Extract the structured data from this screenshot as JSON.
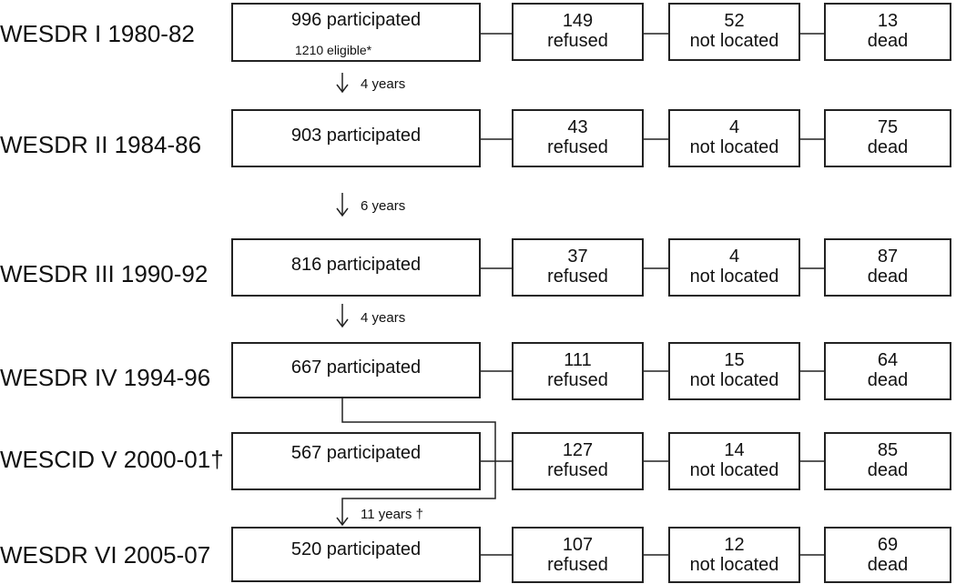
{
  "rows": [
    {
      "label": "WESDR I 1980-82",
      "participated": "996  participated",
      "eligible": "1210 eligible*",
      "refused_n": "149",
      "refused": "refused",
      "notlocated_n": "52",
      "notlocated": "not located",
      "dead_n": "13",
      "dead": "dead"
    },
    {
      "label": "WESDR II 1984-86",
      "participated": "903 participated",
      "refused_n": "43",
      "refused": "refused",
      "notlocated_n": "4",
      "notlocated": "not located",
      "dead_n": "75",
      "dead": "dead"
    },
    {
      "label": "WESDR III 1990-92",
      "participated": "816  participated",
      "refused_n": "37",
      "refused": "refused",
      "notlocated_n": "4",
      "notlocated": "not located",
      "dead_n": "87",
      "dead": "dead"
    },
    {
      "label": "WESDR IV 1994-96",
      "participated": "667  participated",
      "refused_n": "111",
      "refused": "refused",
      "notlocated_n": "15",
      "notlocated": "not located",
      "dead_n": "64",
      "dead": "dead"
    },
    {
      "label": "WESCID V 2000-01†",
      "participated": "567  participated",
      "refused_n": "127",
      "refused": "refused",
      "notlocated_n": "14",
      "notlocated": "not located",
      "dead_n": "85",
      "dead": "dead"
    },
    {
      "label": "WESDR VI 2005-07",
      "participated": "520  participated",
      "refused_n": "107",
      "refused": "refused",
      "notlocated_n": "12",
      "notlocated": "not located",
      "dead_n": "69",
      "dead": "dead"
    }
  ],
  "intervals": [
    "4 years",
    "6 years",
    "4 years",
    "11 years †"
  ]
}
